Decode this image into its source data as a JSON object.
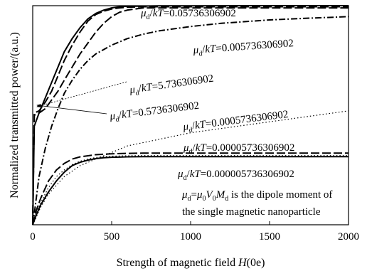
{
  "chart_data": {
    "type": "line",
    "xlabel": "Strength of magnetic field ",
    "xlabel_var": "H",
    "xlabel_unit": "(0e)",
    "ylabel": "Normalized transmitted power/(a.u.)",
    "xlim": [
      0,
      2000
    ],
    "ylim": [
      0,
      1
    ],
    "x_ticks": [
      0,
      500,
      1000,
      1500,
      2000
    ],
    "x_tick_labels": [
      "0",
      "500",
      "1000",
      "1500",
      "2000"
    ],
    "grid": false,
    "series": [
      {
        "label_value": "0.05736306902",
        "style": "solid",
        "x": [
          0,
          10,
          40,
          80,
          120,
          160,
          200,
          250,
          300,
          350,
          400,
          450,
          500,
          550,
          600,
          700,
          800,
          1000,
          1500,
          2000
        ],
        "y": [
          0.0,
          0.45,
          0.51,
          0.58,
          0.65,
          0.72,
          0.79,
          0.85,
          0.9,
          0.94,
          0.965,
          0.98,
          0.99,
          0.995,
          0.997,
          0.998,
          0.999,
          0.999,
          1.0,
          1.0
        ]
      },
      {
        "label_value": "5.736306902",
        "style": "long-dash",
        "x": [
          0,
          10,
          40,
          80,
          120,
          160,
          200,
          250,
          300,
          350,
          400,
          450,
          500,
          550,
          600,
          700,
          800,
          1000,
          1500,
          2000
        ],
        "y": [
          0.0,
          0.51,
          0.52,
          0.56,
          0.61,
          0.68,
          0.75,
          0.82,
          0.88,
          0.93,
          0.96,
          0.975,
          0.985,
          0.99,
          0.993,
          0.995,
          0.995,
          0.995,
          0.995,
          0.995
        ]
      },
      {
        "label_value": "0.005736306902",
        "style": "dash-dot",
        "x": [
          0,
          10,
          40,
          80,
          120,
          160,
          200,
          250,
          300,
          350,
          400,
          450,
          500,
          600,
          700,
          800,
          1000,
          1200,
          1500,
          1750,
          2000
        ],
        "y": [
          0.0,
          0.05,
          0.22,
          0.35,
          0.45,
          0.53,
          0.6,
          0.66,
          0.71,
          0.75,
          0.78,
          0.8,
          0.82,
          0.85,
          0.87,
          0.885,
          0.905,
          0.92,
          0.935,
          0.943,
          0.95
        ]
      },
      {
        "label_value": "0.5736306902",
        "style": "long-dash",
        "x": [
          0,
          10,
          40,
          80,
          120,
          160,
          200,
          250,
          300,
          350,
          400,
          450,
          500,
          550,
          600,
          700,
          800,
          1000,
          1500,
          2000
        ],
        "y": [
          0.0,
          0.5,
          0.51,
          0.53,
          0.57,
          0.61,
          0.66,
          0.72,
          0.78,
          0.83,
          0.88,
          0.92,
          0.95,
          0.97,
          0.98,
          0.99,
          0.99,
          0.99,
          0.99,
          0.99
        ]
      },
      {
        "label_value": "0.0005736306902",
        "style": "dotted",
        "x": [
          0,
          20,
          50,
          100,
          200,
          300,
          400,
          500,
          600,
          800,
          1000,
          1200,
          1400,
          1600,
          1800,
          2000
        ],
        "y": [
          0.0,
          0.03,
          0.08,
          0.14,
          0.22,
          0.27,
          0.3,
          0.33,
          0.36,
          0.39,
          0.42,
          0.44,
          0.46,
          0.48,
          0.5,
          0.52
        ]
      },
      {
        "label_value": "0.00005736306902",
        "style": "long-dash",
        "x": [
          0,
          20,
          50,
          100,
          150,
          200,
          250,
          300,
          350,
          400,
          450,
          500,
          550,
          600,
          700,
          800,
          1000,
          1500,
          2000
        ],
        "y": [
          0.0,
          0.06,
          0.12,
          0.2,
          0.25,
          0.28,
          0.3,
          0.31,
          0.315,
          0.32,
          0.322,
          0.324,
          0.325,
          0.326,
          0.327,
          0.327,
          0.327,
          0.327,
          0.327
        ]
      },
      {
        "label_value": "0.000005736306902",
        "style": "solid",
        "x": [
          0,
          20,
          50,
          100,
          150,
          200,
          250,
          300,
          350,
          400,
          450,
          500,
          550,
          600,
          700,
          800,
          1000,
          1500,
          2000
        ],
        "y": [
          0.0,
          0.04,
          0.09,
          0.15,
          0.2,
          0.24,
          0.27,
          0.285,
          0.295,
          0.302,
          0.306,
          0.308,
          0.309,
          0.31,
          0.311,
          0.311,
          0.311,
          0.311,
          0.311
        ]
      },
      {
        "label_value": "0.00005736306902 (dotted)",
        "style": "dotted",
        "x": [
          0,
          20,
          50,
          100,
          150,
          200,
          250,
          300,
          350,
          400,
          450,
          500,
          600,
          700,
          800,
          1000,
          1500,
          2000
        ],
        "y": [
          0.0,
          0.05,
          0.1,
          0.17,
          0.22,
          0.25,
          0.275,
          0.29,
          0.3,
          0.307,
          0.311,
          0.313,
          0.315,
          0.316,
          0.316,
          0.316,
          0.316,
          0.316
        ]
      }
    ],
    "annotations": [
      {
        "prefix": "μ",
        "sub": "d",
        "mid": "/",
        "var": "kT",
        "value": "=0.05736306902"
      },
      {
        "prefix": "μ",
        "sub": "d",
        "mid": "/",
        "var": "kT",
        "value": "=0.005736306902"
      },
      {
        "prefix": "μ",
        "sub": "d",
        "mid": "/",
        "var": "kT",
        "value": "=5.736306902"
      },
      {
        "prefix": "μ",
        "sub": "d",
        "mid": "/",
        "var": "kT",
        "value": "=0.5736306902"
      },
      {
        "prefix": "μ",
        "sub": "d",
        "mid": "/",
        "var": "kT",
        "value": "=0.0005736306902"
      },
      {
        "prefix": "μ",
        "sub": "d",
        "mid": "/",
        "var": "kT",
        "value": "=0.00005736306902"
      },
      {
        "prefix": "μ",
        "sub": "d",
        "mid": "/",
        "var": "kT",
        "value": "=0.000005736306902"
      }
    ],
    "note_line1": {
      "mu": "μ",
      "mu_sub": "d",
      "eq": "=",
      "mu0": "μ",
      "mu0_sub": "0",
      "V": "V",
      "V_sub": "0",
      "M": "M",
      "M_sub": "d",
      "rest": " is the dipole moment of"
    },
    "note_line2": "the single magnetic nanoparticle"
  }
}
